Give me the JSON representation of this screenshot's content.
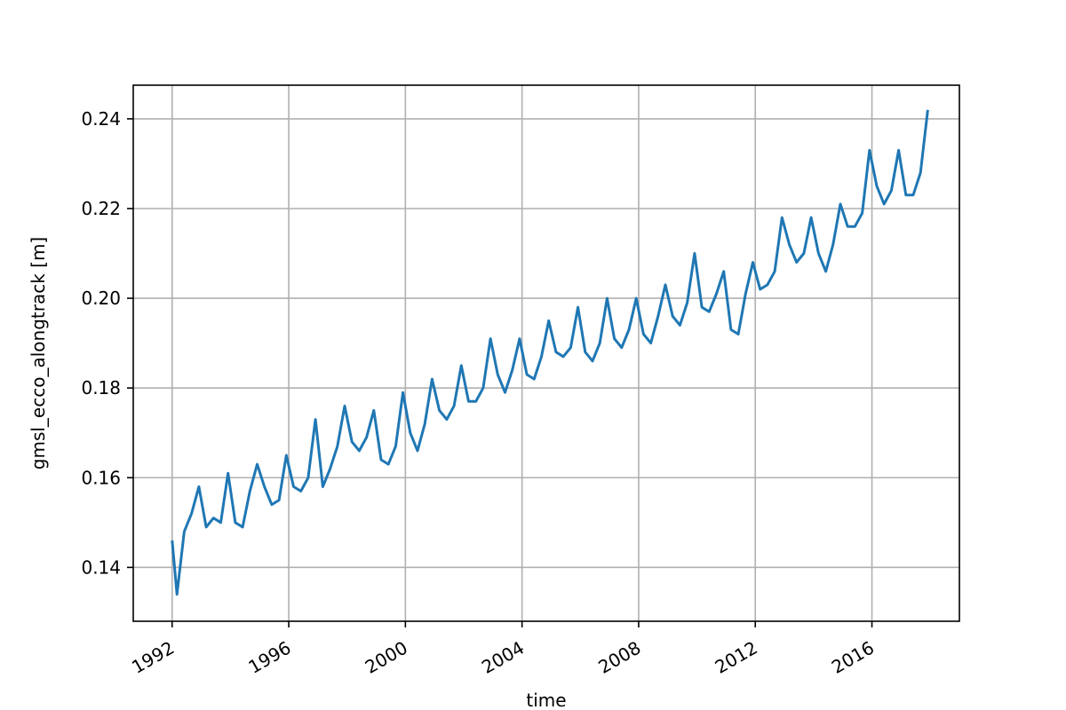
{
  "chart_data": {
    "type": "line",
    "title": "",
    "xlabel": "time",
    "ylabel": "gmsl_ecco_alongtrack [m]",
    "xlim": [
      "1990-09",
      "2019-01"
    ],
    "ylim": [
      0.128,
      0.2475
    ],
    "grid": true,
    "legend": "none",
    "colors": {
      "line": "#1f77b4",
      "grid": "#b0b0b0",
      "axes": "#000000"
    },
    "x_ticks": [
      "1992",
      "1996",
      "2000",
      "2004",
      "2008",
      "2012",
      "2016"
    ],
    "y_ticks": [
      "0.14",
      "0.16",
      "0.18",
      "0.20",
      "0.22",
      "0.24"
    ],
    "series": [
      {
        "x": [
          "1992-01",
          "1992-03",
          "1992-06",
          "1992-09",
          "1992-12",
          "1993-03",
          "1993-06",
          "1993-09",
          "1993-12",
          "1994-03",
          "1994-06",
          "1994-09",
          "1994-12",
          "1995-03",
          "1995-06",
          "1995-09",
          "1995-12",
          "1996-03",
          "1996-06",
          "1996-09",
          "1996-12",
          "1997-03",
          "1997-06",
          "1997-09",
          "1997-12",
          "1998-03",
          "1998-06",
          "1998-09",
          "1998-12",
          "1999-03",
          "1999-06",
          "1999-09",
          "1999-12",
          "2000-03",
          "2000-06",
          "2000-09",
          "2000-12",
          "2001-03",
          "2001-06",
          "2001-09",
          "2001-12",
          "2002-03",
          "2002-06",
          "2002-09",
          "2002-12",
          "2003-03",
          "2003-06",
          "2003-09",
          "2003-12",
          "2004-03",
          "2004-06",
          "2004-09",
          "2004-12",
          "2005-03",
          "2005-06",
          "2005-09",
          "2005-12",
          "2006-03",
          "2006-06",
          "2006-09",
          "2006-12",
          "2007-03",
          "2007-06",
          "2007-09",
          "2007-12",
          "2008-03",
          "2008-06",
          "2008-09",
          "2008-12",
          "2009-03",
          "2009-06",
          "2009-09",
          "2009-12",
          "2010-03",
          "2010-06",
          "2010-09",
          "2010-12",
          "2011-03",
          "2011-06",
          "2011-09",
          "2011-12",
          "2012-03",
          "2012-06",
          "2012-09",
          "2012-12",
          "2013-03",
          "2013-06",
          "2013-09",
          "2013-12",
          "2014-03",
          "2014-06",
          "2014-09",
          "2014-12",
          "2015-03",
          "2015-06",
          "2015-09",
          "2015-12",
          "2016-03",
          "2016-06",
          "2016-09",
          "2016-12",
          "2017-03",
          "2017-06",
          "2017-09",
          "2017-12"
        ],
        "y": [
          0.146,
          0.134,
          0.148,
          0.152,
          0.158,
          0.149,
          0.151,
          0.15,
          0.161,
          0.15,
          0.149,
          0.157,
          0.163,
          0.158,
          0.154,
          0.155,
          0.165,
          0.158,
          0.157,
          0.16,
          0.173,
          0.158,
          0.162,
          0.167,
          0.176,
          0.168,
          0.166,
          0.169,
          0.175,
          0.164,
          0.163,
          0.167,
          0.179,
          0.17,
          0.166,
          0.172,
          0.182,
          0.175,
          0.173,
          0.176,
          0.185,
          0.177,
          0.177,
          0.18,
          0.191,
          0.183,
          0.179,
          0.184,
          0.191,
          0.183,
          0.182,
          0.187,
          0.195,
          0.188,
          0.187,
          0.189,
          0.198,
          0.188,
          0.186,
          0.19,
          0.2,
          0.191,
          0.189,
          0.193,
          0.2,
          0.192,
          0.19,
          0.196,
          0.203,
          0.196,
          0.194,
          0.199,
          0.21,
          0.198,
          0.197,
          0.201,
          0.206,
          0.193,
          0.192,
          0.201,
          0.208,
          0.202,
          0.203,
          0.206,
          0.218,
          0.212,
          0.208,
          0.21,
          0.218,
          0.21,
          0.206,
          0.212,
          0.221,
          0.216,
          0.216,
          0.219,
          0.233,
          0.225,
          0.221,
          0.224,
          0.233,
          0.223,
          0.223,
          0.228,
          0.242
        ]
      }
    ]
  }
}
